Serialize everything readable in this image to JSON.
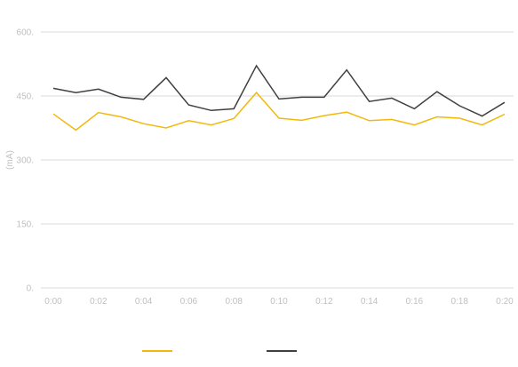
{
  "chart_data": {
    "type": "line",
    "title": "",
    "xlabel": "",
    "ylabel": "(mA)",
    "x": [
      "0:00",
      "0:01",
      "0:02",
      "0:03",
      "0:04",
      "0:05",
      "0:06",
      "0:07",
      "0:08",
      "0:09",
      "0:10",
      "0:11",
      "0:12",
      "0:13",
      "0:14",
      "0:15",
      "0:16",
      "0:17",
      "0:18",
      "0:19",
      "0:20"
    ],
    "x_tick_labels": [
      "0:00",
      "0:02",
      "0:04",
      "0:06",
      "0:08",
      "0:10",
      "0:12",
      "0:14",
      "0:16",
      "0:18",
      "0:20"
    ],
    "y_tick_labels": [
      "0.",
      "150.",
      "300.",
      "450.",
      "600."
    ],
    "ylim": [
      0,
      600
    ],
    "grid": true,
    "legend_position": "bottom",
    "series": [
      {
        "color": "#f2b90c",
        "values": [
          408,
          370,
          411,
          401,
          385,
          375,
          392,
          382,
          397,
          458,
          398,
          393,
          404,
          412,
          392,
          395,
          382,
          401,
          398,
          382,
          407
        ]
      },
      {
        "color": "#404040",
        "values": [
          468,
          458,
          466,
          447,
          442,
          493,
          429,
          416,
          420,
          521,
          443,
          447,
          447,
          511,
          437,
          445,
          420,
          460,
          427,
          403,
          435
        ]
      }
    ]
  }
}
